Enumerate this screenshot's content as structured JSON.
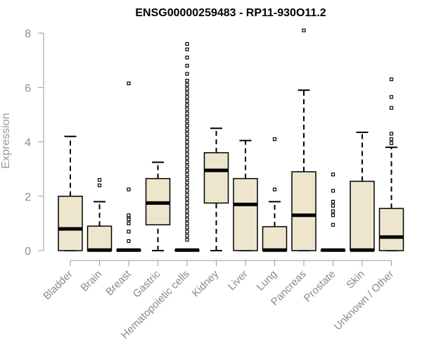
{
  "chart_data": {
    "type": "boxplot",
    "title": "ENSG00000259483 - RP11-930O11.2",
    "ylabel": "Expression",
    "xlabel": "",
    "ylim": [
      0,
      8
    ],
    "yticks": [
      0,
      2,
      4,
      6,
      8
    ],
    "grid": false,
    "colors": {
      "box_fill": "#ede6cd",
      "stroke": "#000000",
      "axis": "#9a9a9a"
    },
    "categories": [
      "Bladder",
      "Brain",
      "Breast",
      "Gastric",
      "Hematopoietic cells",
      "Kidney",
      "Liver",
      "Lung",
      "Pancreas",
      "Prostate",
      "Skin",
      "Unknown / Other"
    ],
    "boxes": [
      {
        "min": 0,
        "q1": 0,
        "median": 0.8,
        "q3": 2.0,
        "max": 4.2,
        "outliers": []
      },
      {
        "min": 0,
        "q1": 0,
        "median": 0.02,
        "q3": 0.9,
        "max": 1.8,
        "outliers": [
          2.4,
          2.6
        ]
      },
      {
        "min": 0,
        "q1": 0,
        "median": 0.02,
        "q3": 0.02,
        "max": 0.02,
        "outliers": [
          0.35,
          0.7,
          1.0,
          1.15,
          1.25,
          1.3,
          2.25,
          6.15
        ]
      },
      {
        "min": 0,
        "q1": 0.95,
        "median": 1.75,
        "q3": 2.65,
        "max": 3.25,
        "outliers": []
      },
      {
        "min": 0,
        "q1": 0,
        "median": 0.02,
        "q3": 0.02,
        "max": 0.02,
        "outliers": [
          0.4,
          0.55,
          0.7,
          0.85,
          1.0,
          1.15,
          1.3,
          1.45,
          1.6,
          1.75,
          1.9,
          2.05,
          2.2,
          2.35,
          2.5,
          2.65,
          2.8,
          2.95,
          3.1,
          3.25,
          3.4,
          3.55,
          3.7,
          3.85,
          4.0,
          4.15,
          4.3,
          4.45,
          4.6,
          4.75,
          4.9,
          5.05,
          5.2,
          5.35,
          5.5,
          5.65,
          5.8,
          5.95,
          6.1,
          6.25,
          6.5,
          6.8,
          7.1,
          7.4,
          7.6
        ]
      },
      {
        "min": 0,
        "q1": 1.75,
        "median": 2.95,
        "q3": 3.6,
        "max": 4.5,
        "outliers": []
      },
      {
        "min": 0,
        "q1": 0,
        "median": 1.7,
        "q3": 2.65,
        "max": 4.05,
        "outliers": []
      },
      {
        "min": 0,
        "q1": 0,
        "median": 0.02,
        "q3": 0.88,
        "max": 1.8,
        "outliers": [
          2.25,
          4.1
        ]
      },
      {
        "min": 0,
        "q1": 0,
        "median": 1.3,
        "q3": 2.9,
        "max": 5.9,
        "outliers": [
          8.1
        ]
      },
      {
        "min": 0,
        "q1": 0,
        "median": 0.02,
        "q3": 0.02,
        "max": 0.02,
        "outliers": [
          0.95,
          1.3,
          1.45,
          1.65,
          1.8,
          2.2,
          2.8
        ]
      },
      {
        "min": 0,
        "q1": 0,
        "median": 0.02,
        "q3": 2.55,
        "max": 4.35,
        "outliers": []
      },
      {
        "min": 0,
        "q1": 0,
        "median": 0.5,
        "q3": 1.55,
        "max": 3.8,
        "outliers": [
          3.95,
          4.1,
          4.3,
          5.25,
          5.65,
          6.3
        ]
      }
    ]
  }
}
